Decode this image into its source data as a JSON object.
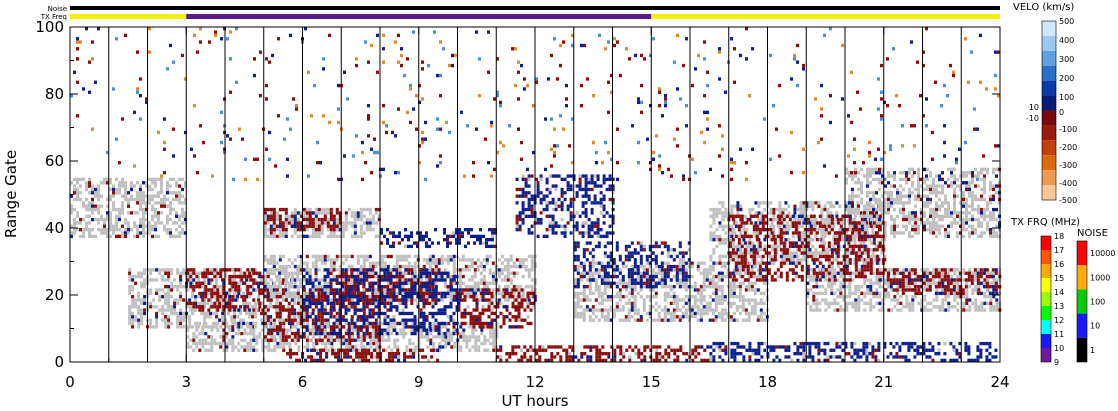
{
  "chart_data": {
    "type": "heatmap",
    "xlabel": "UT hours",
    "ylabel": "Range Gate",
    "xlim": [
      0,
      24
    ],
    "ylim": [
      0,
      100
    ],
    "x_ticks": [
      "0",
      "3",
      "6",
      "9",
      "12",
      "15",
      "18",
      "21",
      "24"
    ],
    "y_ticks": [
      "0",
      "20",
      "40",
      "60",
      "80",
      "100"
    ],
    "scan_boundaries_ut": [
      1,
      2,
      3,
      4,
      5,
      6,
      7,
      8,
      9,
      10,
      11,
      12,
      13,
      14,
      15,
      16,
      17,
      18,
      19,
      20,
      21,
      22,
      23
    ],
    "status_bars": {
      "noise_label": "Noise",
      "txfreq_label": "TX Freq",
      "noise": [
        {
          "start": 0,
          "end": 24,
          "color": "#000000"
        }
      ],
      "tx_freq": [
        {
          "start": 0,
          "end": 3,
          "color": "#f2f200"
        },
        {
          "start": 3,
          "end": 15,
          "color": "#5a1a8a"
        },
        {
          "start": 15,
          "end": 24,
          "color": "#f2f200"
        }
      ]
    },
    "velocity_colorbar": {
      "title": "VELO (km/s)",
      "labels": [
        "500",
        "400",
        "300",
        "200",
        "100",
        "10",
        "0",
        "-10",
        "-100",
        "-200",
        "-300",
        "-400",
        "-500"
      ]
    },
    "txfreq_colorbar": {
      "title": "TX FRQ (MHz)",
      "labels": [
        "18",
        "17",
        "16",
        "15",
        "14",
        "13",
        "12",
        "11",
        "10",
        "9"
      ]
    },
    "noise_colorbar": {
      "title": "NOISE",
      "labels": [
        "10000",
        "1000",
        "100",
        "10",
        "1"
      ]
    },
    "colors": {
      "ground_scatter": "#c0c0c0",
      "positive_velocity": "#0d1f8a",
      "negative_velocity": "#8b0d0d",
      "positive_light": "#4a90d8",
      "negative_light": "#e08a30"
    },
    "echo_regions": [
      {
        "x": [
          0,
          3
        ],
        "y": [
          38,
          55
        ],
        "kind": "ground"
      },
      {
        "x": [
          1.5,
          6
        ],
        "y": [
          10,
          28
        ],
        "kind": "ground"
      },
      {
        "x": [
          3,
          11
        ],
        "y": [
          3,
          12
        ],
        "kind": "ground"
      },
      {
        "x": [
          5,
          12
        ],
        "y": [
          18,
          32
        ],
        "kind": "ground"
      },
      {
        "x": [
          5,
          8
        ],
        "y": [
          38,
          46
        ],
        "kind": "ground"
      },
      {
        "x": [
          13,
          18
        ],
        "y": [
          12,
          30
        ],
        "kind": "ground"
      },
      {
        "x": [
          16.5,
          21
        ],
        "y": [
          30,
          48
        ],
        "kind": "ground"
      },
      {
        "x": [
          19,
          24
        ],
        "y": [
          15,
          28
        ],
        "kind": "ground"
      },
      {
        "x": [
          20,
          24
        ],
        "y": [
          38,
          58
        ],
        "kind": "ground"
      },
      {
        "x": [
          3,
          5
        ],
        "y": [
          15,
          28
        ],
        "kind": "negative"
      },
      {
        "x": [
          5,
          8
        ],
        "y": [
          6,
          22
        ],
        "kind": "negative"
      },
      {
        "x": [
          5,
          7
        ],
        "y": [
          40,
          46
        ],
        "kind": "negative"
      },
      {
        "x": [
          7,
          9.5
        ],
        "y": [
          17,
          28
        ],
        "kind": "negative"
      },
      {
        "x": [
          10,
          12
        ],
        "y": [
          10,
          22
        ],
        "kind": "negative"
      },
      {
        "x": [
          5.5,
          9.5
        ],
        "y": [
          0,
          4
        ],
        "kind": "negative"
      },
      {
        "x": [
          11,
          16.5
        ],
        "y": [
          0,
          5
        ],
        "kind": "negative"
      },
      {
        "x": [
          6,
          10
        ],
        "y": [
          8,
          28
        ],
        "kind": "positive"
      },
      {
        "x": [
          8,
          11
        ],
        "y": [
          35,
          40
        ],
        "kind": "positive"
      },
      {
        "x": [
          11.5,
          14
        ],
        "y": [
          38,
          56
        ],
        "kind": "positive"
      },
      {
        "x": [
          13,
          16
        ],
        "y": [
          22,
          36
        ],
        "kind": "positive"
      },
      {
        "x": [
          16.5,
          24
        ],
        "y": [
          0,
          6
        ],
        "kind": "positive"
      },
      {
        "x": [
          17,
          21
        ],
        "y": [
          24,
          44
        ],
        "kind": "negative"
      },
      {
        "x": [
          21,
          24
        ],
        "y": [
          20,
          28
        ],
        "kind": "negative"
      },
      {
        "x": [
          0,
          24
        ],
        "y": [
          55,
          100
        ],
        "kind": "scatter"
      }
    ]
  }
}
